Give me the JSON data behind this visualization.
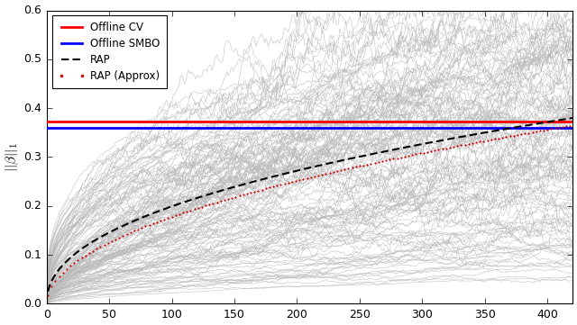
{
  "xlim": [
    0,
    420
  ],
  "ylim": [
    0.0,
    0.6
  ],
  "yticks": [
    0.0,
    0.1,
    0.2,
    0.3,
    0.4,
    0.5,
    0.6
  ],
  "xticks": [
    0,
    50,
    100,
    150,
    200,
    250,
    300,
    350,
    400
  ],
  "offline_cv_y": 0.372,
  "offline_smbo_y": 0.36,
  "n_steps": 420,
  "n_gray_lines": 150,
  "rap_color": "#000000",
  "rap_approx_color": "#cc0000",
  "offline_cv_color": "#ff0000",
  "offline_smbo_color": "#0000ff",
  "gray_color": "#b8b8b8",
  "ylabel": "$||\\beta||_1$",
  "legend_entries": [
    "Offline CV",
    "Offline SMBO",
    "RAP",
    "RAP (Approx)"
  ],
  "rap_scale": 0.38,
  "rap_approx_scale": 0.365,
  "rap_rate": 0.008,
  "rap_approx_rate": 0.007
}
